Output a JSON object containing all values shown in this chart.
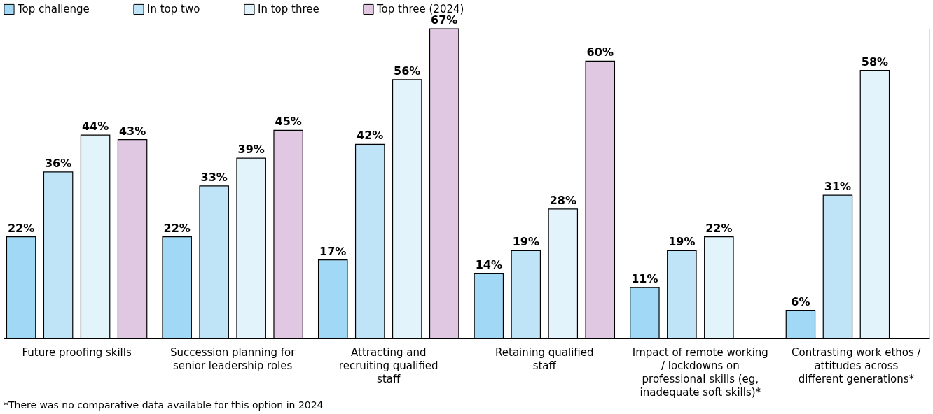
{
  "chart_data": {
    "type": "bar",
    "categories": [
      "Future proofing skills",
      "Succession planning for senior leadership roles",
      "Attracting and recruiting qualified staff",
      "Retaining qualified staff",
      "Impact of remote working / lockdowns on professional skills (eg, inadequate soft skills)*",
      "Contrasting work ethos / attitudes across different generations*"
    ],
    "series": [
      {
        "name": "Top challenge",
        "color": "#a0d8f5",
        "values": [
          22,
          22,
          17,
          14,
          11,
          6
        ],
        "value_labels": [
          "22%",
          "22%",
          "17%",
          "14%",
          "11%",
          "6%"
        ]
      },
      {
        "name": "In top two",
        "color": "#bfe3f7",
        "values": [
          36,
          33,
          42,
          19,
          19,
          31
        ],
        "value_labels": [
          "36%",
          "33%",
          "42%",
          "19%",
          "19%",
          "31%"
        ]
      },
      {
        "name": "In top three",
        "color": "#e3f3fc",
        "values": [
          44,
          39,
          56,
          28,
          22,
          58
        ],
        "value_labels": [
          "44%",
          "39%",
          "56%",
          "28%",
          "22%",
          "58%"
        ]
      },
      {
        "name": "Top three (2024)",
        "color": "#e0c8e2",
        "values": [
          43,
          45,
          67,
          60,
          null,
          null
        ],
        "value_labels": [
          "43%",
          "45%",
          "67%",
          "60%",
          null,
          null
        ]
      }
    ],
    "legend": "top left",
    "annotations": [
      "*There was no comparative data available for this option in 2024"
    ]
  }
}
